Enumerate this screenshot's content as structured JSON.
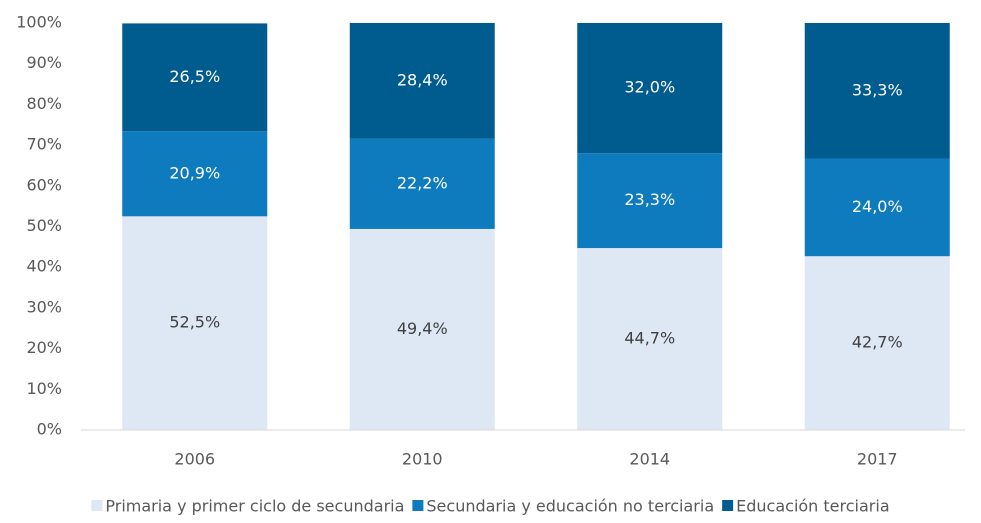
{
  "chart_data": {
    "type": "stacked_bar",
    "categories": [
      "2006",
      "2010",
      "2014",
      "2017"
    ],
    "series": [
      {
        "name": "Primaria y primer ciclo de secundaria",
        "color": "#dde8f4",
        "values": [
          52.5,
          49.4,
          44.7,
          42.7
        ],
        "value_labels": [
          "52,5%",
          "49,4%",
          "44,7%",
          "42,7%"
        ]
      },
      {
        "name": "Secundaria y educación no terciaria",
        "color": "#0f7bbf",
        "values": [
          20.9,
          22.2,
          23.3,
          24.0
        ],
        "value_labels": [
          "20,9%",
          "22,2%",
          "23,3%",
          "24,0%"
        ]
      },
      {
        "name": "Educación terciaria",
        "color": "#005b8f",
        "values": [
          26.5,
          28.4,
          32.0,
          33.3
        ],
        "value_labels": [
          "26,5%",
          "28,4%",
          "32,0%",
          "33,3%"
        ]
      }
    ],
    "ylim": [
      0,
      100
    ],
    "yticks": [
      {
        "value": 0,
        "label": "0%"
      },
      {
        "value": 10,
        "label": "10%"
      },
      {
        "value": 20,
        "label": "20%"
      },
      {
        "value": 30,
        "label": "30%"
      },
      {
        "value": 40,
        "label": "40%"
      },
      {
        "value": 50,
        "label": "50%"
      },
      {
        "value": 60,
        "label": "60%"
      },
      {
        "value": 70,
        "label": "70%"
      },
      {
        "value": 80,
        "label": "80%"
      },
      {
        "value": 90,
        "label": "90%"
      },
      {
        "value": 100,
        "label": "100%"
      }
    ],
    "grid": false,
    "legend": "bottom"
  }
}
